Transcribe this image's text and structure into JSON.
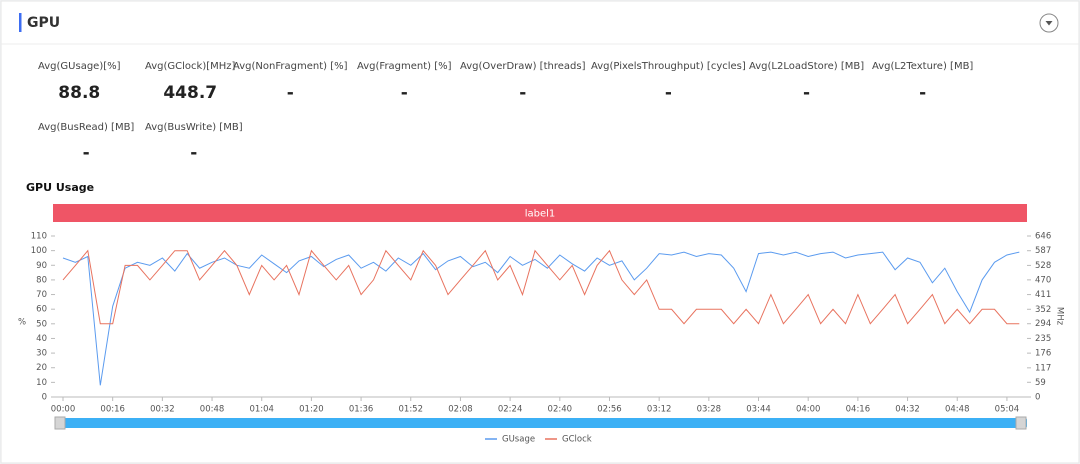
{
  "header": {
    "title": "GPU"
  },
  "stats": [
    {
      "label": "Avg(GUsage)[%]",
      "value": 88.8
    },
    {
      "label": "Avg(GClock)[MHz]",
      "value": 448.7
    },
    {
      "label": "Avg(NonFragment) [%]",
      "value": "-"
    },
    {
      "label": "Avg(Fragment) [%]",
      "value": "-"
    },
    {
      "label": "Avg(OverDraw) [threads]",
      "value": "-"
    },
    {
      "label": "Avg(PixelsThroughput) [cycles]",
      "value": "-"
    },
    {
      "label": "Avg(L2LoadStore) [MB]",
      "value": "-"
    },
    {
      "label": "Avg(L2Texture) [MB]",
      "value": "-"
    },
    {
      "label": "Avg(BusRead) [MB]",
      "value": "-"
    },
    {
      "label": "Avg(BusWrite) [MB]",
      "value": "-"
    }
  ],
  "chart_data": {
    "type": "line",
    "title": "GPU Usage",
    "band_label": "label1",
    "ylabel": "%",
    "y2label": "MHz",
    "categories": [
      "00:00",
      null,
      null,
      null,
      "00:16",
      null,
      null,
      null,
      "00:32",
      null,
      null,
      null,
      "00:48",
      null,
      null,
      null,
      "01:04",
      null,
      null,
      null,
      "01:20",
      null,
      null,
      null,
      "01:36",
      null,
      null,
      null,
      "01:52",
      null,
      null,
      null,
      "02:08",
      null,
      null,
      null,
      "02:24",
      null,
      null,
      null,
      "02:40",
      null,
      null,
      null,
      "02:56",
      null,
      null,
      null,
      "03:12",
      null,
      null,
      null,
      "03:28",
      null,
      null,
      null,
      "03:44",
      null,
      null,
      null,
      "04:00",
      null,
      null,
      null,
      "04:16",
      null,
      null,
      null,
      "04:32",
      null,
      null,
      null,
      "04:48",
      null,
      null,
      null,
      "05:04",
      null
    ],
    "series": [
      {
        "name": "GUsage",
        "color": "#5b9bef",
        "axis": "y",
        "values": [
          95,
          92,
          96,
          8,
          62,
          88,
          92,
          90,
          95,
          86,
          98,
          88,
          92,
          95,
          90,
          88,
          97,
          91,
          85,
          93,
          96,
          89,
          94,
          97,
          88,
          92,
          86,
          95,
          90,
          98,
          87,
          93,
          96,
          89,
          92,
          85,
          96,
          90,
          94,
          88,
          97,
          91,
          86,
          95,
          90,
          93,
          80,
          88,
          98,
          97,
          99,
          96,
          98,
          97,
          88,
          72,
          98,
          99,
          97,
          99,
          96,
          98,
          99,
          95,
          97,
          98,
          99,
          87,
          95,
          92,
          78,
          88,
          72,
          58,
          80,
          92,
          97,
          99
        ]
      },
      {
        "name": "GClock",
        "color": "#e8735f",
        "axis": "y2",
        "values": [
          470,
          528,
          587,
          294,
          294,
          528,
          528,
          470,
          528,
          587,
          587,
          470,
          528,
          587,
          528,
          411,
          528,
          470,
          528,
          411,
          587,
          528,
          470,
          528,
          411,
          470,
          587,
          528,
          470,
          587,
          528,
          411,
          470,
          528,
          587,
          470,
          528,
          411,
          587,
          528,
          470,
          528,
          411,
          528,
          587,
          470,
          411,
          470,
          352,
          352,
          294,
          352,
          352,
          352,
          294,
          352,
          294,
          411,
          294,
          352,
          411,
          294,
          352,
          294,
          411,
          294,
          352,
          411,
          294,
          352,
          411,
          294,
          352,
          294,
          352,
          352,
          294,
          294
        ]
      }
    ],
    "ylim": [
      0,
      110
    ],
    "yticks": [
      0,
      10,
      20,
      30,
      40,
      50,
      60,
      70,
      80,
      90,
      100,
      110
    ],
    "y2lim": [
      0,
      646
    ],
    "y2ticks": [
      0,
      59,
      117,
      176,
      235,
      294,
      352,
      411,
      470,
      528,
      587,
      646
    ]
  }
}
